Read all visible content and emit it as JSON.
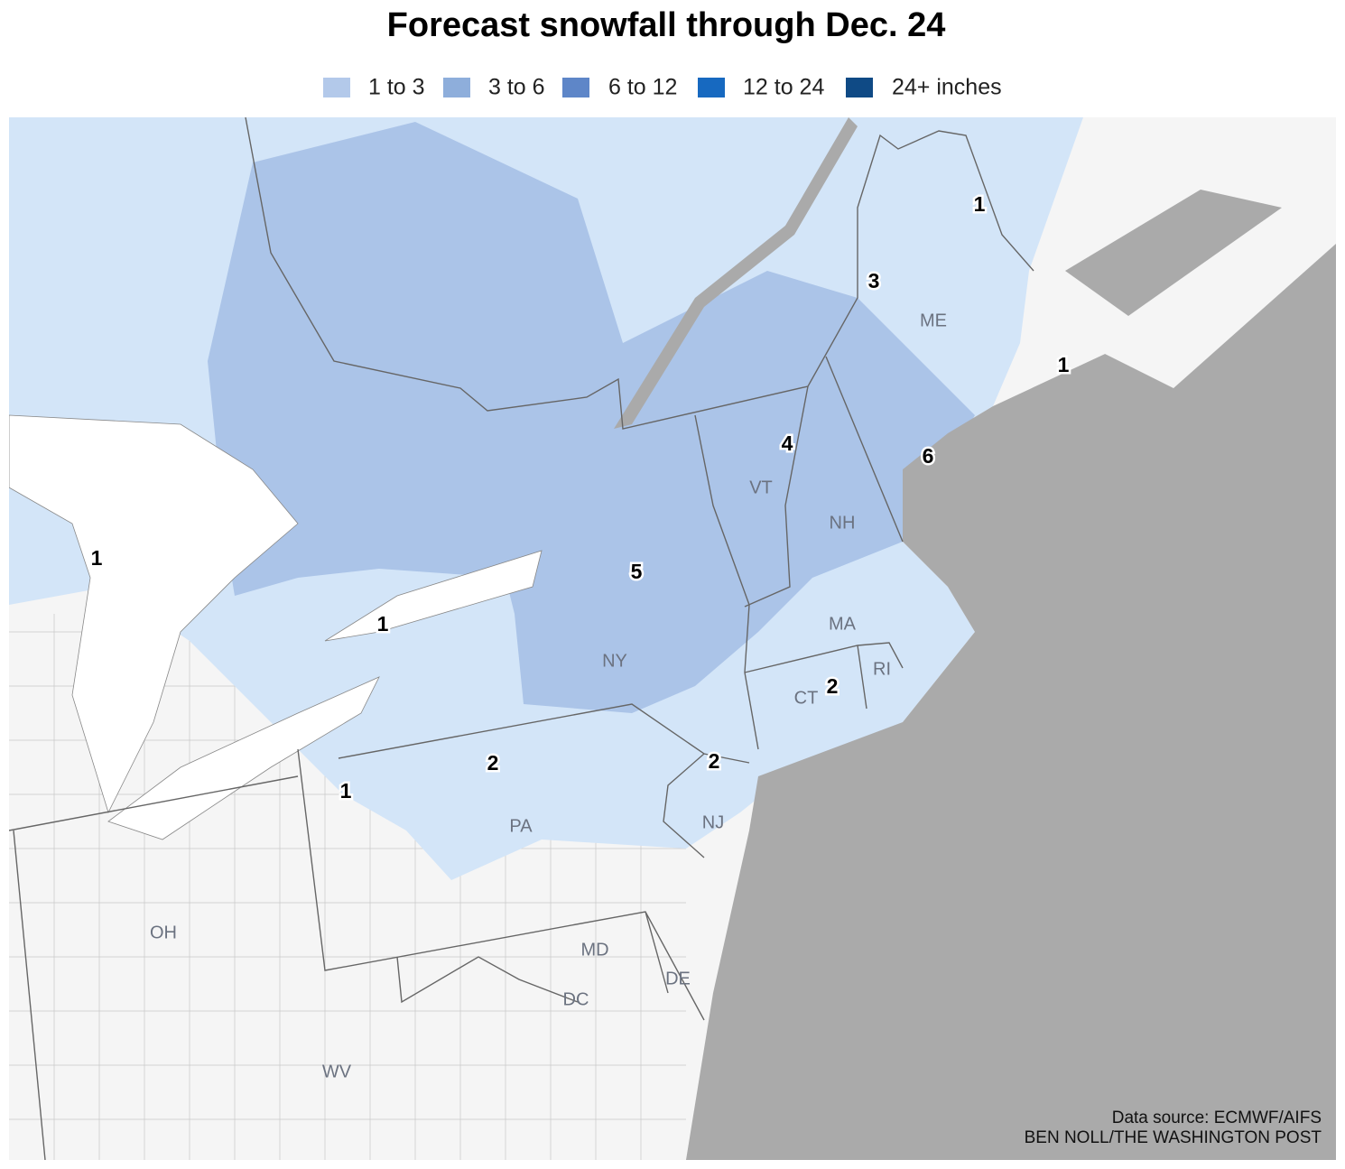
{
  "title": "Forecast snowfall through Dec. 24",
  "legend": [
    {
      "label": "1 to 3",
      "color": "#b3c9ea"
    },
    {
      "label": "3 to 6",
      "color": "#8eaedb"
    },
    {
      "label": "6 to 12",
      "color": "#5e86c8"
    },
    {
      "label": "12 to 24",
      "color": "#1769c0"
    },
    {
      "label": "24+ inches",
      "color": "#0f4a85"
    }
  ],
  "state_labels": [
    "ME",
    "VT",
    "NH",
    "MA",
    "NY",
    "CT",
    "RI",
    "PA",
    "NJ",
    "OH",
    "MD",
    "DE",
    "DC",
    "WV"
  ],
  "snowfall_labels": [
    1,
    3,
    1,
    4,
    6,
    5,
    1,
    1,
    2,
    2,
    2,
    1
  ],
  "source": "Data source: ECMWF/AIFS",
  "credit": "BEN NOLL/THE WASHINGTON POST"
}
